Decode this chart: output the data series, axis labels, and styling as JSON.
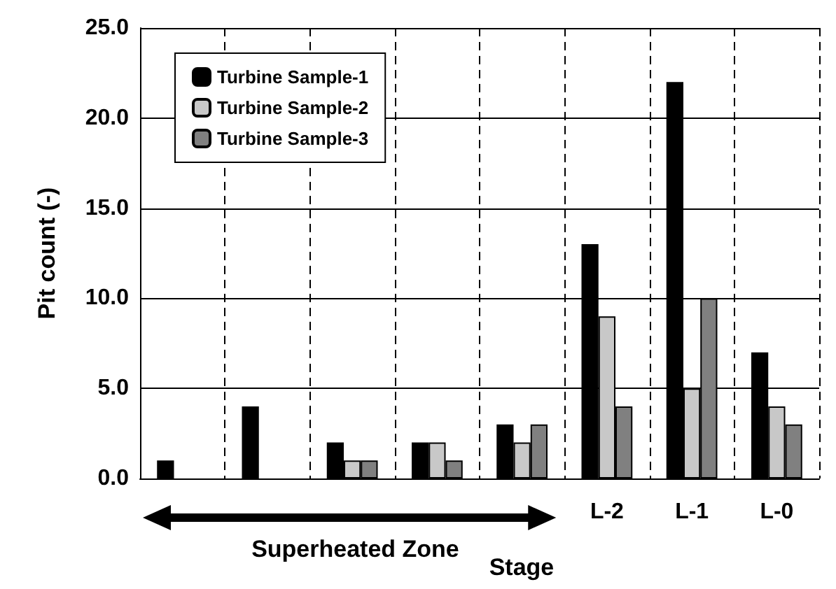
{
  "chart_data": {
    "type": "bar",
    "xlabel": "Stage",
    "ylabel": "Pit count (-)",
    "categories": [
      null,
      null,
      null,
      null,
      null,
      "L-2",
      "L-1",
      "L-0"
    ],
    "series": [
      {
        "name": "Turbine Sample-1",
        "color": "#000000",
        "values": [
          1,
          4,
          2,
          2,
          3,
          13,
          22,
          7
        ]
      },
      {
        "name": "Turbine Sample-2",
        "color": "#c8c8c8",
        "values": [
          0,
          0,
          1,
          2,
          2,
          9,
          5,
          4
        ]
      },
      {
        "name": "Turbine Sample-3",
        "color": "#808080",
        "values": [
          0,
          0,
          1,
          1,
          3,
          4,
          10,
          3
        ]
      }
    ],
    "ylim": [
      0,
      25
    ],
    "yticks": [
      {
        "value": 0,
        "label": "0.0"
      },
      {
        "value": 5,
        "label": "5.0"
      },
      {
        "value": 10,
        "label": "10.0"
      },
      {
        "value": 15,
        "label": "15.0"
      },
      {
        "value": 20,
        "label": "20.0"
      },
      {
        "value": 25,
        "label": "25.0"
      }
    ],
    "annotations": [
      "Superheated Zone"
    ],
    "grid": true,
    "legend": "top left"
  }
}
